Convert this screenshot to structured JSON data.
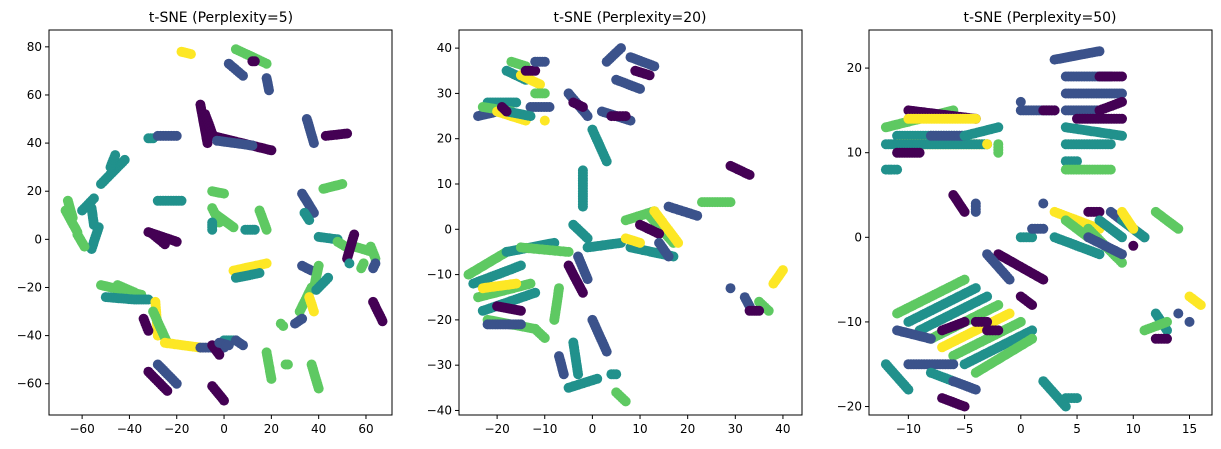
{
  "colors": {
    "viridis": [
      "#440154",
      "#3b528b",
      "#21918c",
      "#5ec962",
      "#fde725"
    ]
  },
  "chart_data": [
    {
      "type": "scatter",
      "title": "t-SNE (Perplexity=5)",
      "xlabel": "",
      "ylabel": "",
      "xlim": [
        -74,
        71
      ],
      "ylim": [
        -73,
        87
      ],
      "xticks": [
        -60,
        -40,
        -20,
        0,
        20,
        40,
        60
      ],
      "yticks": [
        -60,
        -40,
        -20,
        0,
        20,
        40,
        60,
        80
      ],
      "grid": false,
      "strokes": [
        [
          -18,
          78,
          -14,
          77,
          4
        ],
        [
          2,
          73,
          8,
          68,
          1
        ],
        [
          5,
          79,
          18,
          73,
          3
        ],
        [
          12,
          74,
          13,
          74,
          0
        ],
        [
          18,
          67,
          19,
          62,
          1
        ],
        [
          -10,
          56,
          -7,
          40,
          0
        ],
        [
          -8,
          52,
          -5,
          44,
          0
        ],
        [
          -5,
          43,
          20,
          37,
          0
        ],
        [
          -3,
          41,
          12,
          39,
          1
        ],
        [
          -32,
          42,
          -30,
          42,
          2
        ],
        [
          -28,
          43,
          -20,
          43,
          1
        ],
        [
          -42,
          33,
          -52,
          23,
          2
        ],
        [
          -48,
          30,
          -46,
          35,
          2
        ],
        [
          -60,
          12,
          -55,
          17,
          2
        ],
        [
          -64,
          9,
          -66,
          16,
          3
        ],
        [
          -67,
          12,
          -62,
          3,
          3
        ],
        [
          -56,
          13,
          -55,
          6,
          2
        ],
        [
          -53,
          5,
          -56,
          -4,
          2
        ],
        [
          -62,
          2,
          -59,
          -3,
          3
        ],
        [
          -28,
          16,
          -18,
          16,
          2
        ],
        [
          -32,
          3,
          -20,
          -1,
          0
        ],
        [
          -30,
          2,
          -25,
          -2,
          0
        ],
        [
          -5,
          20,
          0,
          19,
          3
        ],
        [
          -5,
          13,
          -2,
          7,
          3
        ],
        [
          -3,
          10,
          4,
          5,
          3
        ],
        [
          -5,
          7,
          -5,
          4,
          2
        ],
        [
          15,
          12,
          18,
          4,
          3
        ],
        [
          9,
          4,
          13,
          4,
          2
        ],
        [
          35,
          50,
          38,
          40,
          1
        ],
        [
          43,
          43,
          52,
          44,
          0
        ],
        [
          33,
          19,
          38,
          11,
          1
        ],
        [
          42,
          21,
          50,
          23,
          3
        ],
        [
          34,
          11,
          36,
          8,
          2
        ],
        [
          4,
          -13,
          18,
          -10,
          4
        ],
        [
          5,
          -16,
          15,
          -14,
          2
        ],
        [
          40,
          1,
          48,
          0,
          2
        ],
        [
          48,
          -1,
          53,
          -4,
          3
        ],
        [
          55,
          -3,
          62,
          -5,
          3
        ],
        [
          55,
          2,
          52,
          -8,
          0
        ],
        [
          62,
          -3,
          64,
          -8,
          3
        ],
        [
          64,
          -10,
          63,
          -12,
          1
        ],
        [
          59,
          -10,
          58,
          -12,
          3
        ],
        [
          53,
          -10,
          53,
          -10,
          2
        ],
        [
          33,
          -11,
          37,
          -13,
          1
        ],
        [
          40,
          -11,
          38,
          -20,
          3
        ],
        [
          37,
          -20,
          32,
          -30,
          3
        ],
        [
          36,
          -24,
          38,
          -30,
          4
        ],
        [
          39,
          -21,
          44,
          -16,
          2
        ],
        [
          33,
          -33,
          30,
          -35,
          1
        ],
        [
          24,
          -35,
          25,
          -36,
          3
        ],
        [
          63,
          -26,
          67,
          -34,
          0
        ],
        [
          -52,
          -19,
          -35,
          -23,
          3
        ],
        [
          -45,
          -19,
          -38,
          -22,
          3
        ],
        [
          -50,
          -24,
          -38,
          -25,
          2
        ],
        [
          -37,
          -25,
          -32,
          -25,
          2
        ],
        [
          -29,
          -26,
          -28,
          -40,
          4
        ],
        [
          -30,
          -30,
          -24,
          -43,
          3
        ],
        [
          -25,
          -43,
          -10,
          -45,
          4
        ],
        [
          -10,
          -45,
          0,
          -45,
          1
        ],
        [
          -5,
          -44,
          -2,
          -48,
          0
        ],
        [
          -34,
          -33,
          -32,
          -38,
          0
        ],
        [
          -32,
          -55,
          -24,
          -63,
          0
        ],
        [
          -28,
          -52,
          -20,
          -60,
          1
        ],
        [
          -5,
          -61,
          0,
          -67,
          0
        ],
        [
          0,
          -42,
          5,
          -42,
          2
        ],
        [
          5,
          -42,
          8,
          -44,
          1
        ],
        [
          -2,
          -43,
          2,
          -44,
          1
        ],
        [
          18,
          -47,
          20,
          -58,
          3
        ],
        [
          26,
          -52,
          27,
          -52,
          3
        ],
        [
          37,
          -52,
          40,
          -62,
          3
        ]
      ]
    },
    {
      "type": "scatter",
      "title": "t-SNE (Perplexity=20)",
      "xlabel": "",
      "ylabel": "",
      "xlim": [
        -28,
        44
      ],
      "ylim": [
        -41,
        44
      ],
      "xticks": [
        -20,
        -10,
        0,
        10,
        20,
        30,
        40
      ],
      "yticks": [
        -40,
        -30,
        -20,
        -10,
        0,
        10,
        20,
        30,
        40
      ],
      "grid": false,
      "strokes": [
        [
          -17,
          37,
          -14,
          36,
          3
        ],
        [
          -18,
          35,
          -14,
          33,
          2
        ],
        [
          -15,
          34,
          -11,
          32,
          4
        ],
        [
          -14,
          35,
          -12,
          35,
          0
        ],
        [
          -12,
          37,
          -10,
          37,
          1
        ],
        [
          -12,
          30,
          -10,
          30,
          3
        ],
        [
          -13,
          27,
          -9,
          27,
          1
        ],
        [
          -22,
          28,
          -16,
          28,
          2
        ],
        [
          -24,
          25,
          -20,
          26,
          1
        ],
        [
          -23,
          27,
          -17,
          26,
          3
        ],
        [
          -20,
          26,
          -14,
          24,
          4
        ],
        [
          -18,
          26,
          -13,
          25,
          2
        ],
        [
          -19,
          27,
          -18,
          26,
          0
        ],
        [
          -10,
          24,
          -10,
          24,
          4
        ],
        [
          -5,
          30,
          -1,
          25,
          1
        ],
        [
          -4,
          28,
          -2,
          27,
          0
        ],
        [
          3,
          37,
          6,
          40,
          1
        ],
        [
          5,
          33,
          10,
          31,
          1
        ],
        [
          8,
          38,
          13,
          36,
          1
        ],
        [
          9,
          35,
          12,
          34,
          0
        ],
        [
          2,
          26,
          8,
          24,
          1
        ],
        [
          4,
          25,
          7,
          25,
          0
        ],
        [
          0,
          22,
          3,
          15,
          2
        ],
        [
          -2,
          13,
          -2,
          5,
          2
        ],
        [
          -4,
          1,
          -1,
          -2,
          2
        ],
        [
          -1,
          -4,
          6,
          -3,
          2
        ],
        [
          7,
          2,
          13,
          4,
          3
        ],
        [
          12,
          3,
          17,
          -3,
          3
        ],
        [
          13,
          4,
          18,
          -3,
          4
        ],
        [
          10,
          1,
          14,
          -1,
          0
        ],
        [
          8,
          -4,
          17,
          -6,
          2
        ],
        [
          7,
          -2,
          10,
          -3,
          4
        ],
        [
          16,
          5,
          22,
          3,
          1
        ],
        [
          23,
          6,
          29,
          6,
          3
        ],
        [
          14,
          -3,
          16,
          -6,
          1
        ],
        [
          -26,
          -10,
          -18,
          -5,
          3
        ],
        [
          -25,
          -12,
          -15,
          -8,
          2
        ],
        [
          -24,
          -15,
          -13,
          -12,
          3
        ],
        [
          -23,
          -18,
          -12,
          -14,
          2
        ],
        [
          -22,
          -20,
          -12,
          -22,
          3
        ],
        [
          -22,
          -21,
          -15,
          -21,
          1
        ],
        [
          -20,
          -17,
          -15,
          -18,
          0
        ],
        [
          -23,
          -13,
          -16,
          -12,
          4
        ],
        [
          -18,
          -5,
          -8,
          -3,
          2
        ],
        [
          -15,
          -4,
          -5,
          -5,
          3
        ],
        [
          -7,
          -13,
          -8,
          -20,
          3
        ],
        [
          -12,
          -22,
          -10,
          -24,
          3
        ],
        [
          -5,
          -8,
          -2,
          -14,
          0
        ],
        [
          -3,
          -6,
          -1,
          -11,
          1
        ],
        [
          0,
          -20,
          3,
          -27,
          1
        ],
        [
          -4,
          -25,
          -3,
          -32,
          2
        ],
        [
          -7,
          -28,
          -6,
          -32,
          1
        ],
        [
          -5,
          -35,
          1,
          -33,
          2
        ],
        [
          5,
          -36,
          7,
          -38,
          3
        ],
        [
          4,
          -32,
          5,
          -32,
          2
        ],
        [
          29,
          14,
          33,
          12,
          0
        ],
        [
          29,
          -13,
          29,
          -13,
          1
        ],
        [
          32,
          -15,
          33,
          -17,
          1
        ],
        [
          35,
          -16,
          37,
          -18,
          3
        ],
        [
          33,
          -18,
          35,
          -18,
          0
        ],
        [
          38,
          -12,
          40,
          -9,
          4
        ]
      ]
    },
    {
      "type": "scatter",
      "title": "t-SNE (Perplexity=50)",
      "xlabel": "",
      "ylabel": "",
      "xlim": [
        -13.5,
        17
      ],
      "ylim": [
        -21,
        24.5
      ],
      "xticks": [
        -10,
        -5,
        0,
        5,
        10,
        15
      ],
      "yticks": [
        -20,
        -10,
        0,
        10,
        20
      ],
      "grid": false,
      "strokes": [
        [
          -12,
          13,
          -6,
          15,
          3
        ],
        [
          -11,
          12,
          -5,
          12,
          2
        ],
        [
          -10,
          15,
          -4,
          14,
          0
        ],
        [
          -10,
          14,
          -4,
          14,
          4
        ],
        [
          -11,
          11,
          -3,
          11,
          4
        ],
        [
          -12,
          11,
          -3,
          11,
          2
        ],
        [
          -11,
          10,
          -9,
          10,
          0
        ],
        [
          -8,
          12,
          -5,
          12,
          1
        ],
        [
          -12,
          8,
          -11,
          8,
          2
        ],
        [
          -5,
          12,
          -2,
          13,
          2
        ],
        [
          -3,
          11,
          -3,
          11,
          4
        ],
        [
          -2,
          11,
          -2,
          10,
          3
        ],
        [
          0,
          15,
          3,
          15,
          1
        ],
        [
          0,
          16,
          0,
          16,
          1
        ],
        [
          2,
          15,
          3,
          15,
          0
        ],
        [
          3,
          21,
          7,
          22,
          1
        ],
        [
          4,
          19,
          8,
          19,
          1
        ],
        [
          7,
          19,
          9,
          19,
          0
        ],
        [
          4,
          17,
          9,
          17,
          1
        ],
        [
          4,
          15,
          7,
          15,
          1
        ],
        [
          7,
          15,
          9,
          16,
          0
        ],
        [
          5,
          14,
          9,
          14,
          0
        ],
        [
          4,
          13,
          9,
          12,
          2
        ],
        [
          4,
          11,
          8,
          11,
          2
        ],
        [
          4,
          9,
          5,
          9,
          2
        ],
        [
          4,
          8,
          8,
          8,
          3
        ],
        [
          -6,
          5,
          -5,
          3,
          0
        ],
        [
          -4,
          4,
          -4,
          3,
          1
        ],
        [
          -2,
          -2,
          2,
          -5,
          0
        ],
        [
          -3,
          -2,
          -1,
          -5,
          1
        ],
        [
          0,
          0,
          1,
          0,
          2
        ],
        [
          1,
          1,
          2,
          1,
          1
        ],
        [
          2,
          4,
          2,
          4,
          1
        ],
        [
          3,
          3,
          7,
          1,
          4
        ],
        [
          4,
          2,
          6,
          0,
          3
        ],
        [
          3,
          0,
          7,
          -2,
          2
        ],
        [
          6,
          1,
          9,
          -3,
          3
        ],
        [
          6,
          0,
          9,
          -2,
          1
        ],
        [
          6,
          3,
          7,
          3,
          0
        ],
        [
          8,
          3,
          11,
          0,
          1
        ],
        [
          7,
          2,
          9,
          0,
          2
        ],
        [
          9,
          2,
          11,
          0,
          2
        ],
        [
          9,
          3,
          10,
          1,
          4
        ],
        [
          12,
          3,
          14,
          1,
          3
        ],
        [
          10,
          -1,
          10,
          -1,
          0
        ],
        [
          15,
          -7,
          16,
          -8,
          4
        ],
        [
          12,
          -9,
          13,
          -11,
          2
        ],
        [
          11,
          -11,
          13,
          -10,
          3
        ],
        [
          12,
          -12,
          13,
          -12,
          0
        ],
        [
          14,
          -9,
          14,
          -9,
          1
        ],
        [
          15,
          -10,
          15,
          -10,
          1
        ],
        [
          -11,
          -9,
          -5,
          -5,
          3
        ],
        [
          -10,
          -10,
          -4,
          -6,
          2
        ],
        [
          -9,
          -11,
          -3,
          -7,
          2
        ],
        [
          -8,
          -12,
          -2,
          -8,
          3
        ],
        [
          -7,
          -13,
          -1,
          -9,
          4
        ],
        [
          -6,
          -14,
          0,
          -10,
          3
        ],
        [
          -5,
          -15,
          1,
          -11,
          2
        ],
        [
          -4,
          -16,
          1,
          -12,
          3
        ],
        [
          -11,
          -11,
          -8,
          -12,
          1
        ],
        [
          -10,
          -15,
          -6,
          -15,
          1
        ],
        [
          -8,
          -16,
          -6,
          -17,
          2
        ],
        [
          -6,
          -17,
          -4,
          -18,
          1
        ],
        [
          -7,
          -19,
          -5,
          -20,
          0
        ],
        [
          -12,
          -15,
          -10,
          -18,
          2
        ],
        [
          -4,
          -10,
          -3,
          -10,
          0
        ],
        [
          -3,
          -11,
          -2,
          -11,
          0
        ],
        [
          -7,
          -11,
          -5,
          -10,
          0
        ],
        [
          0,
          -7,
          1,
          -8,
          0
        ],
        [
          2,
          -17,
          4,
          -20,
          2
        ],
        [
          4,
          -19,
          5,
          -19,
          2
        ]
      ]
    }
  ]
}
